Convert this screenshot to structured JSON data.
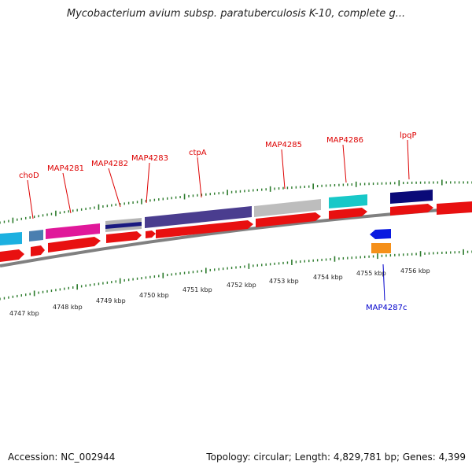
{
  "title": "Mycobacterium avium subsp. paratuberculosis K-10, complete g...",
  "accession": "Accession: NC_002944",
  "summary": "Topology: circular; Length: 4,829,781 bp; Genes: 4,399",
  "colors": {
    "label_forward": "#dd0000",
    "label_reverse": "#0000cc",
    "backbone": "#808080",
    "tick": "#2a7a2a"
  },
  "kbp_ticks": [
    "4747 kbp",
    "4748 kbp",
    "4749 kbp",
    "4750 kbp",
    "4751 kbp",
    "4752 kbp",
    "4753 kbp",
    "4754 kbp",
    "4755 kbp",
    "4756 kbp"
  ],
  "gene_labels": [
    {
      "name": "choD",
      "strand": "forward"
    },
    {
      "name": "MAP4281",
      "strand": "forward"
    },
    {
      "name": "MAP4282",
      "strand": "forward"
    },
    {
      "name": "MAP4283",
      "strand": "forward"
    },
    {
      "name": "ctpA",
      "strand": "forward"
    },
    {
      "name": "MAP4285",
      "strand": "forward"
    },
    {
      "name": "MAP4286",
      "strand": "forward"
    },
    {
      "name": "lpqP",
      "strand": "forward"
    },
    {
      "name": "MAP4287c",
      "strand": "reverse"
    }
  ]
}
